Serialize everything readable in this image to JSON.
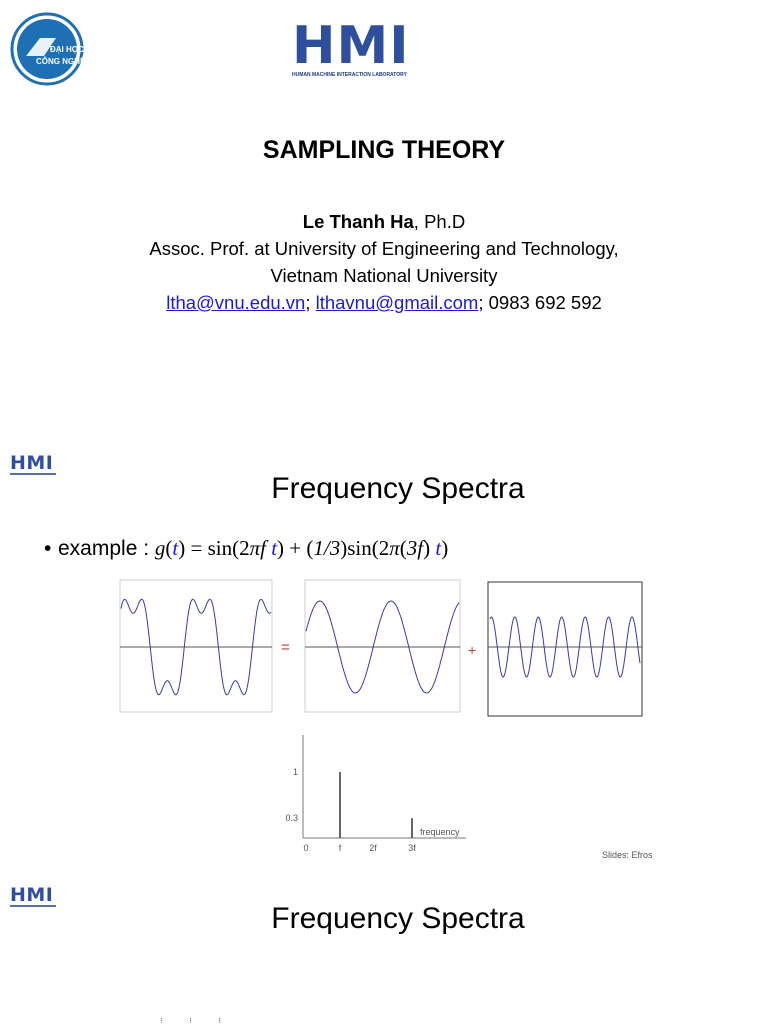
{
  "slide1": {
    "hmi_logo_text": "HMI",
    "hmi_logo_subtitle": "HUMAN MACHINE INTERACTION LABORATORY",
    "uni_logo_text_line1": "ĐẠI HỌC",
    "uni_logo_text_line2": "CÔNG NGHỆ",
    "title": "SAMPLING THEORY",
    "author_name": "Le Thanh Ha",
    "author_degree": ", Ph.D",
    "affiliation_line1": "Assoc. Prof. at University of Engineering and Technology,",
    "affiliation_line2": "Vietnam National University",
    "email1": "ltha@vnu.edu.vn",
    "sep1": "; ",
    "email2": "lthavnu@gmail.com",
    "phone": "; 0983 692 592"
  },
  "slide2": {
    "logo_text": "HMI",
    "title": "Frequency Spectra",
    "bullet_label": "example : ",
    "equals_sign": "=",
    "plus_sign": "+",
    "credit": "Slides: Efros",
    "spectrum_chart": {
      "y_ticks": [
        "1",
        "0.3"
      ],
      "x_ticks": [
        "0",
        "f",
        "2f",
        "3f"
      ],
      "axis_label": "frequency"
    }
  },
  "slide3": {
    "logo_text": "HMI",
    "title": "Frequency Spectra"
  },
  "chart_data": {
    "type": "bar",
    "categories": [
      "f",
      "3f"
    ],
    "values": [
      1,
      0.3
    ],
    "xlabel": "frequency",
    "ylabel": "",
    "x_ticks": [
      "0",
      "f",
      "2f",
      "3f"
    ],
    "y_ticks": [
      1,
      0.3
    ]
  },
  "colors": {
    "brand": "#2e4e9e",
    "link": "#1a1ad8",
    "wave": "#3a3aa8",
    "operator": "#c0392b"
  }
}
